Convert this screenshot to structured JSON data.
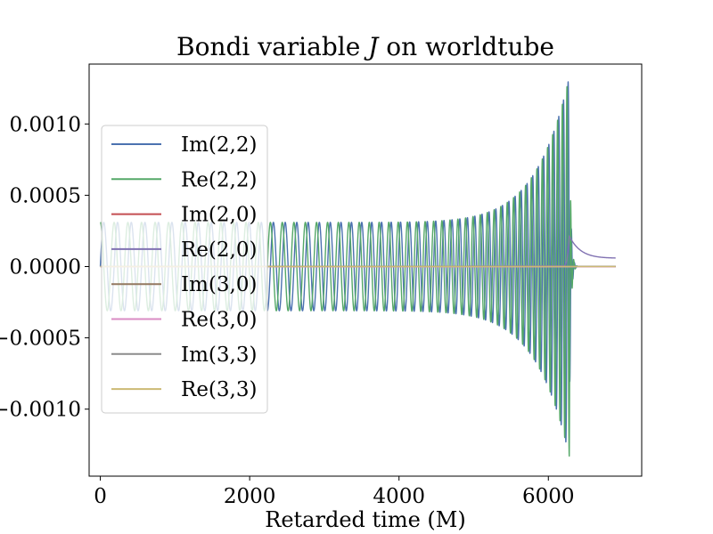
{
  "chart_data": {
    "type": "line",
    "title_prefix": "Bondi variable ",
    "title_symbol": "J",
    "title_suffix": " on worldtube",
    "xlabel": "Retarded time (M)",
    "ylabel": "",
    "xlim": [
      -150,
      7250
    ],
    "ylim": [
      -0.00147,
      0.00142
    ],
    "xticks": [
      0,
      2000,
      4000,
      6000
    ],
    "xtick_labels": [
      "0",
      "2000",
      "4000",
      "6000"
    ],
    "yticks": [
      0.001,
      0.0005,
      0.0,
      -0.0005,
      -0.001
    ],
    "ytick_labels": [
      "0.0010",
      "0.0005",
      "0.0000",
      "−0.0005",
      "−0.0010"
    ],
    "grid": false,
    "legend_position": "center-left",
    "waveform_model": {
      "t_start": 0,
      "t_merger": 6280,
      "t_end": 6900,
      "start_amplitude": 0.00031,
      "peak_amplitude": 0.00133,
      "start_period": 185,
      "end_period": 60,
      "ringdown_period": 40,
      "ringdown_decay": 18,
      "memory_final": 0.000215,
      "memory_late": 6e-05
    },
    "series": [
      {
        "name": "Im(2,2)",
        "color": "#4c72b0",
        "kind": "oscillation",
        "phase": "sin"
      },
      {
        "name": "Re(2,2)",
        "color": "#55a868",
        "kind": "oscillation",
        "phase": "cos"
      },
      {
        "name": "Im(2,0)",
        "color": "#c44e52",
        "kind": "flat",
        "value": 0.0
      },
      {
        "name": "Re(2,0)",
        "color": "#8172b2",
        "kind": "memory",
        "values_at": [
          [
            0,
            0.0
          ],
          [
            6200,
            4.5e-06
          ],
          [
            6280,
            0.000215
          ],
          [
            6900,
            6e-05
          ]
        ]
      },
      {
        "name": "Im(3,0)",
        "color": "#937860",
        "kind": "flat",
        "value": 0.0
      },
      {
        "name": "Re(3,0)",
        "color": "#da8bc3",
        "kind": "flat",
        "value": -2e-06
      },
      {
        "name": "Im(3,3)",
        "color": "#8c8c8c",
        "kind": "flat",
        "value": 2e-06
      },
      {
        "name": "Re(3,3)",
        "color": "#ccb974",
        "kind": "flat",
        "value": 0.0
      }
    ]
  }
}
